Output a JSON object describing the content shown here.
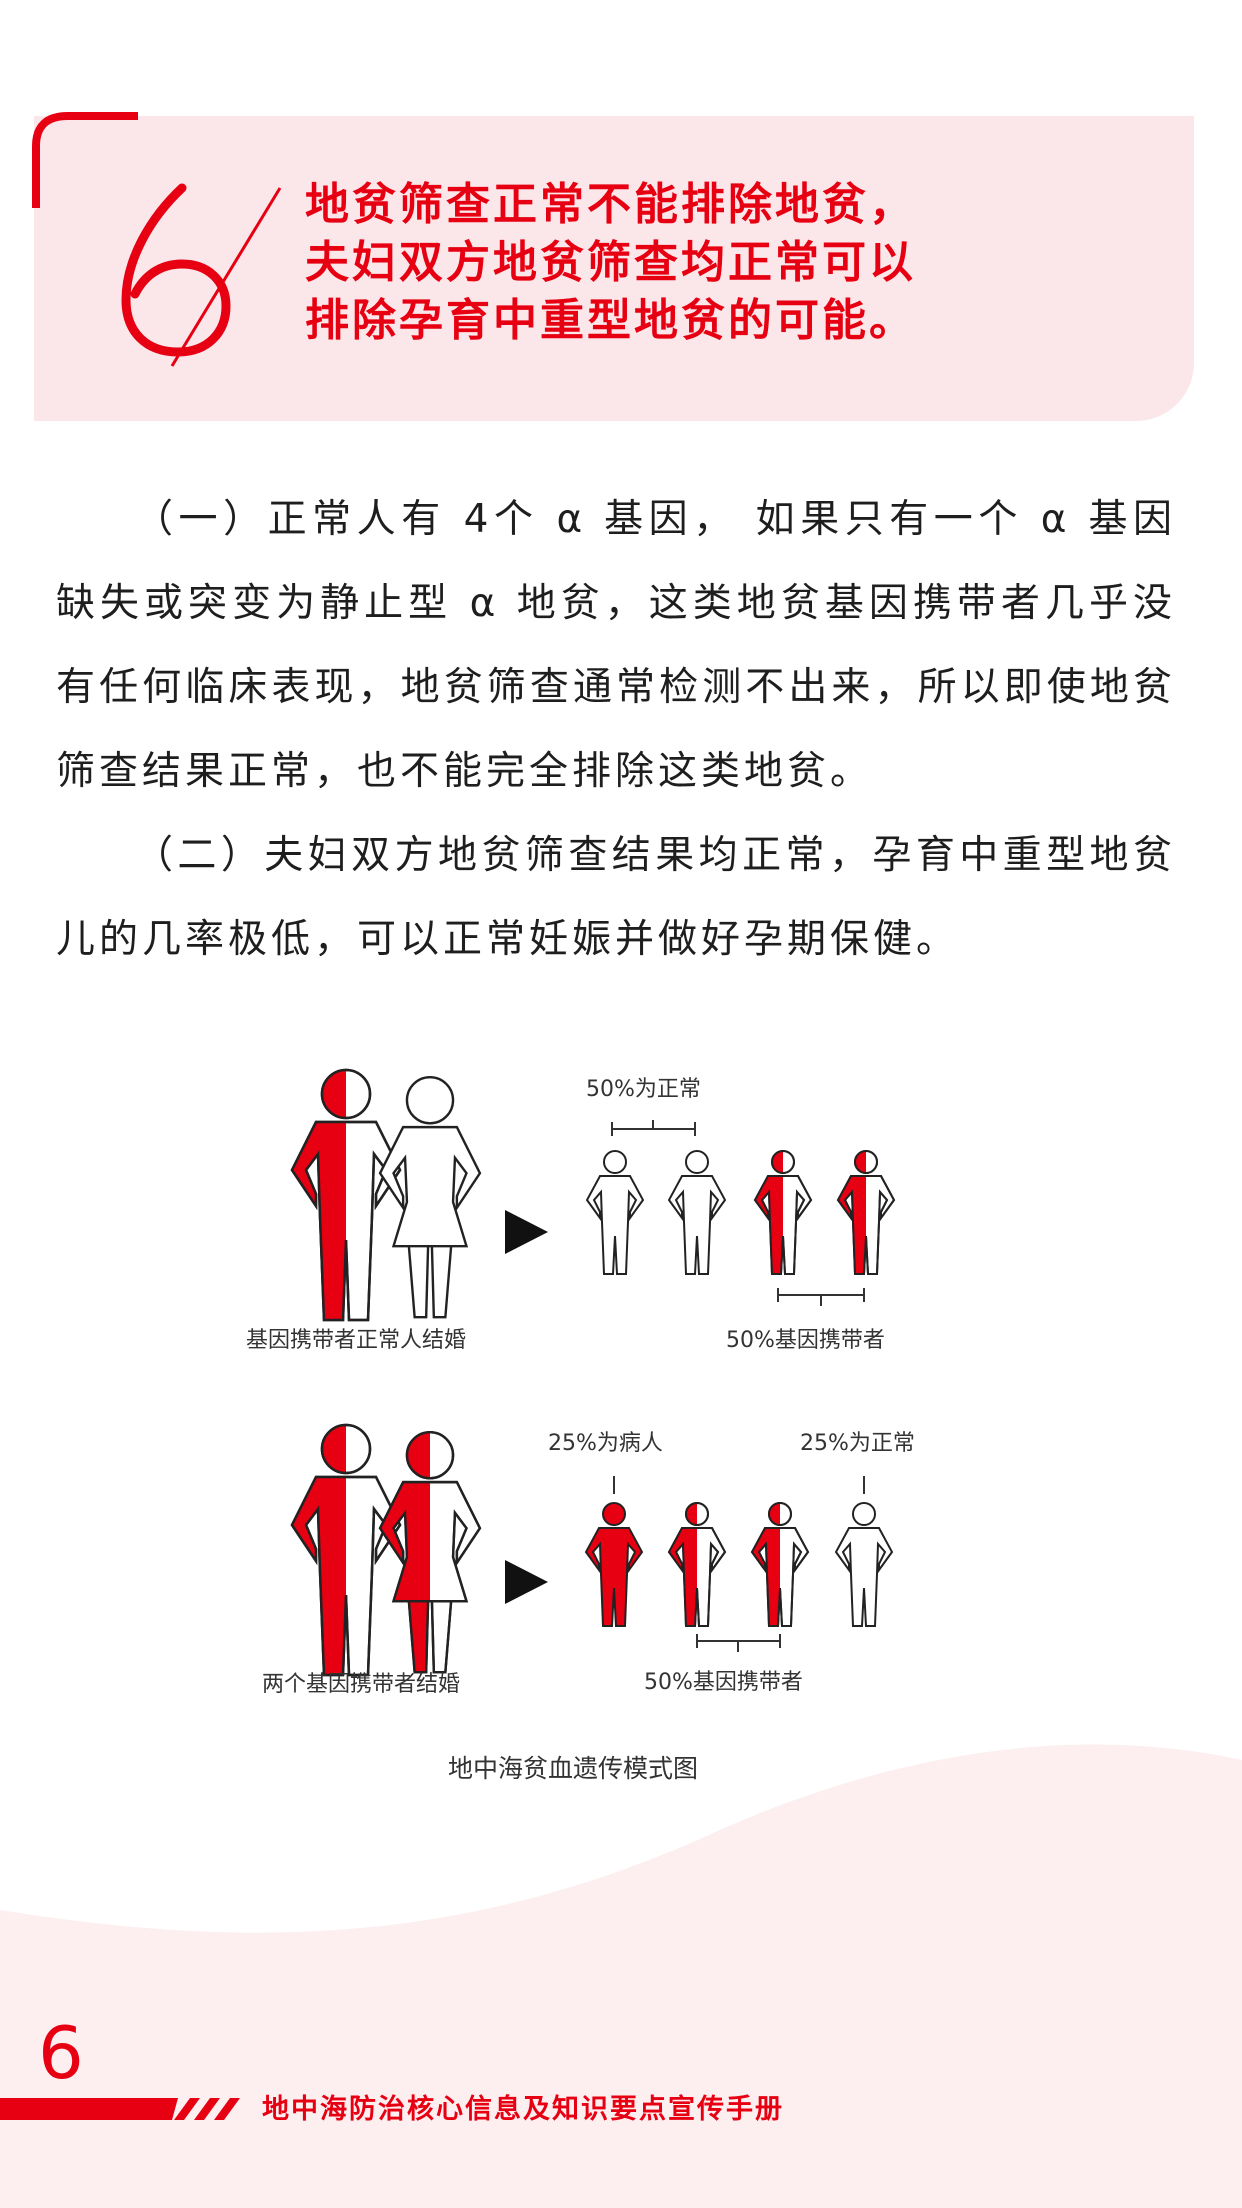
{
  "header": {
    "section_number": "6",
    "title_lines": [
      "地贫筛查正常不能排除地贫，",
      "夫妇双方地贫筛查均正常可以",
      "排除孕育中重型地贫的可能。"
    ]
  },
  "body": {
    "paragraphs": [
      "（一）正常人有 4个 α 基因， 如果只有一个 α 基因缺失或突变为静止型 α 地贫，这类地贫基因携带者几乎没有任何临床表现，地贫筛查通常检测不出来，所以即使地贫筛查结果正常，也不能完全排除这类地贫。",
      "（二）夫妇双方地贫筛查结果均正常，孕育中重型地贫儿的几率极低，可以正常妊娠并做好孕期保健。"
    ]
  },
  "figure": {
    "row1": {
      "parents_caption": "基因携带者正常人结婚",
      "top_label": "50%为正常",
      "bottom_label": "50%基因携带者"
    },
    "row2": {
      "parents_caption": "两个基因携带者结婚",
      "label_left": "25%为病人",
      "label_right": "25%为正常",
      "bottom_label": "50%基因携带者"
    },
    "caption": "地中海贫血遗传模式图"
  },
  "footer": {
    "page_number": "6",
    "book_title": "地中海防治核心信息及知识要点宣传手册"
  },
  "colors": {
    "accent": "#e60012",
    "header_bg": "#fbe7ea",
    "wave_bg": "#fdeef0"
  }
}
